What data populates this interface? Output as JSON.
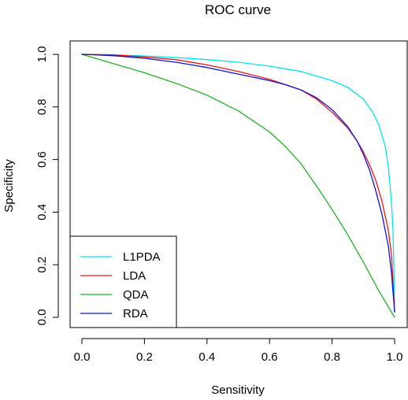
{
  "chart_data": {
    "type": "line",
    "title": "ROC curve",
    "xlabel": "Sensitivity",
    "ylabel": "Specificity",
    "xlim": [
      0,
      1
    ],
    "ylim": [
      0,
      1
    ],
    "xticks": [
      0.0,
      0.2,
      0.4,
      0.6,
      0.8,
      1.0
    ],
    "xtick_labels": [
      "0.0",
      "0.2",
      "0.4",
      "0.6",
      "0.8",
      "1.0"
    ],
    "yticks": [
      0.0,
      0.2,
      0.4,
      0.6,
      0.8,
      1.0
    ],
    "ytick_labels": [
      "0.0",
      "0.2",
      "0.4",
      "0.6",
      "0.8",
      "1.0"
    ],
    "grid": false,
    "legend_position": "bottom-left",
    "series": [
      {
        "name": "L1PDA",
        "color": "#00e5ee",
        "x": [
          0.0,
          0.1,
          0.2,
          0.3,
          0.4,
          0.5,
          0.6,
          0.7,
          0.8,
          0.85,
          0.9,
          0.93,
          0.95,
          0.97,
          0.98,
          0.99,
          0.995,
          1.0
        ],
        "y": [
          1.0,
          0.998,
          0.994,
          0.988,
          0.98,
          0.97,
          0.955,
          0.935,
          0.9,
          0.875,
          0.83,
          0.78,
          0.73,
          0.65,
          0.57,
          0.44,
          0.33,
          0.05
        ]
      },
      {
        "name": "LDA",
        "color": "#e41a1c",
        "x": [
          0.0,
          0.1,
          0.2,
          0.3,
          0.4,
          0.5,
          0.6,
          0.7,
          0.75,
          0.8,
          0.85,
          0.88,
          0.9,
          0.92,
          0.94,
          0.96,
          0.98,
          0.99,
          1.0
        ],
        "y": [
          1.0,
          0.998,
          0.99,
          0.98,
          0.96,
          0.935,
          0.905,
          0.865,
          0.83,
          0.78,
          0.72,
          0.67,
          0.63,
          0.58,
          0.52,
          0.44,
          0.33,
          0.24,
          0.02
        ]
      },
      {
        "name": "QDA",
        "color": "#1db41d",
        "x": [
          0.0,
          0.1,
          0.2,
          0.3,
          0.4,
          0.5,
          0.6,
          0.65,
          0.7,
          0.75,
          0.8,
          0.85,
          0.9,
          0.95,
          1.0
        ],
        "y": [
          1.0,
          0.965,
          0.93,
          0.89,
          0.845,
          0.785,
          0.705,
          0.65,
          0.585,
          0.5,
          0.41,
          0.315,
          0.21,
          0.1,
          0.0
        ]
      },
      {
        "name": "RDA",
        "color": "#1010d0",
        "x": [
          0.0,
          0.1,
          0.2,
          0.3,
          0.4,
          0.5,
          0.6,
          0.65,
          0.7,
          0.75,
          0.8,
          0.85,
          0.88,
          0.9,
          0.92,
          0.94,
          0.96,
          0.98,
          0.99,
          1.0
        ],
        "y": [
          1.0,
          0.995,
          0.985,
          0.97,
          0.95,
          0.925,
          0.9,
          0.885,
          0.865,
          0.835,
          0.79,
          0.725,
          0.67,
          0.62,
          0.56,
          0.48,
          0.39,
          0.27,
          0.17,
          0.02
        ]
      }
    ]
  }
}
